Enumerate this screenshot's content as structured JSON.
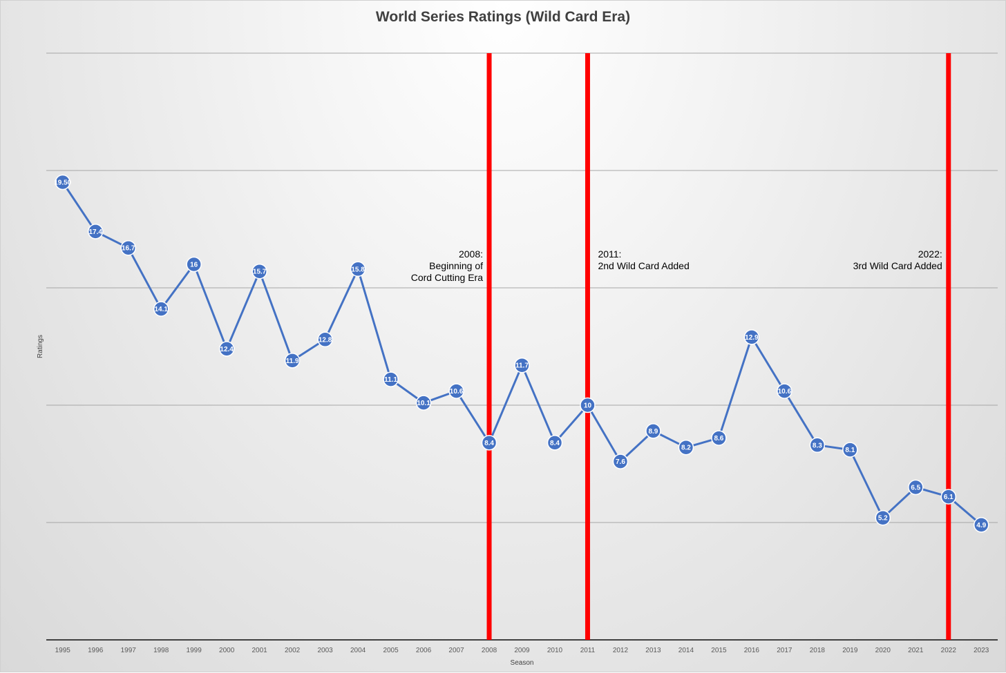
{
  "chart_data": {
    "type": "line",
    "title": "World Series Ratings (Wild Card Era)",
    "xlabel": "Season",
    "ylabel": "Ratings",
    "ylim": [
      0,
      25
    ],
    "grid": true,
    "y_gridlines": [
      0,
      5,
      10,
      15,
      20,
      25
    ],
    "show_y_tick_labels": false,
    "categories": [
      "1995",
      "1996",
      "1997",
      "1998",
      "1999",
      "2000",
      "2001",
      "2002",
      "2003",
      "2004",
      "2005",
      "2006",
      "2007",
      "2008",
      "2009",
      "2010",
      "2011",
      "2012",
      "2013",
      "2014",
      "2015",
      "2016",
      "2017",
      "2018",
      "2019",
      "2020",
      "2021",
      "2022",
      "2023"
    ],
    "series": [
      {
        "color": "#4472C4",
        "values": [
          19.5,
          17.4,
          16.7,
          14.1,
          16,
          12.4,
          15.7,
          11.9,
          12.8,
          15.8,
          11.1,
          10.1,
          10.6,
          8.4,
          11.7,
          8.4,
          10,
          7.6,
          8.9,
          8.2,
          8.6,
          12.9,
          10.6,
          8.3,
          8.1,
          5.2,
          6.5,
          6.1,
          4.9
        ],
        "data_labels": [
          "19.50",
          "17.4",
          "16.7",
          "14.1",
          "16",
          "12.4",
          "15.7",
          "11.9",
          "12.8",
          "15.8",
          "11.1",
          "10.1",
          "10.6",
          "8.4",
          "11.7",
          "8.4",
          "10",
          "7.6",
          "8.9",
          "8.2",
          "8.6",
          "12.9",
          "10.6",
          "8.3",
          "8.1",
          "5.2",
          "6.5",
          "6.1",
          "4.9"
        ]
      }
    ],
    "vertical_markers": [
      {
        "x": "2008",
        "color": "#FF0000",
        "label_lines": [
          "2008:",
          "Beginning of",
          "Cord Cutting Era"
        ],
        "label_side": "left"
      },
      {
        "x": "2011",
        "color": "#FF0000",
        "label_lines": [
          "2011:",
          "2nd Wild Card Added"
        ],
        "label_side": "right"
      },
      {
        "x": "2022",
        "color": "#FF0000",
        "label_lines": [
          "2022:",
          "3rd Wild Card Added"
        ],
        "label_side": "left"
      }
    ]
  }
}
